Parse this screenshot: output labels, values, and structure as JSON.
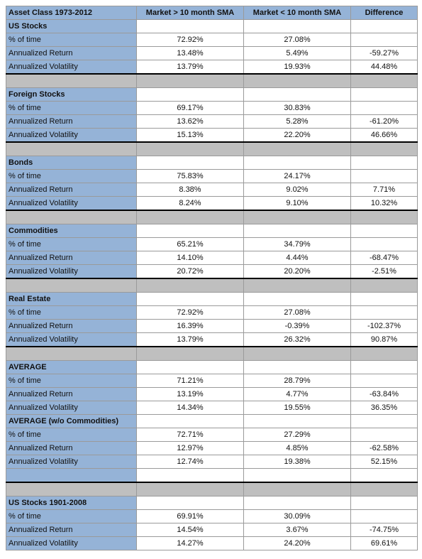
{
  "header": [
    "Asset Class 1973-2012",
    "Market > 10 month SMA",
    "Market < 10 month SMA",
    "Difference"
  ],
  "sections": [
    {
      "title": "US Stocks",
      "rows": [
        {
          "label": "% of time",
          "values": [
            "72.92%",
            "27.08%"
          ]
        },
        {
          "label": "Annualized Return",
          "values": [
            "13.48%",
            "5.49%",
            "-59.27%"
          ]
        },
        {
          "label": "Annualized Volatility",
          "values": [
            "13.79%",
            "19.93%",
            "44.48%"
          ]
        }
      ]
    },
    {
      "title": "Foreign Stocks",
      "rows": [
        {
          "label": "% of time",
          "values": [
            "69.17%",
            "30.83%"
          ]
        },
        {
          "label": "Annualized Return",
          "values": [
            "13.62%",
            "5.28%",
            "-61.20%"
          ]
        },
        {
          "label": "Annualized Volatility",
          "values": [
            "15.13%",
            "22.20%",
            "46.66%"
          ]
        }
      ]
    },
    {
      "title": "Bonds",
      "rows": [
        {
          "label": "% of time",
          "values": [
            "75.83%",
            "24.17%"
          ]
        },
        {
          "label": "Annualized Return",
          "values": [
            "8.38%",
            "9.02%",
            "7.71%"
          ]
        },
        {
          "label": "Annualized Volatility",
          "values": [
            "8.24%",
            "9.10%",
            "10.32%"
          ]
        }
      ]
    },
    {
      "title": "Commodities",
      "rows": [
        {
          "label": "% of time",
          "values": [
            "65.21%",
            "34.79%"
          ]
        },
        {
          "label": "Annualized Return",
          "values": [
            "14.10%",
            "4.44%",
            "-68.47%"
          ]
        },
        {
          "label": "Annualized Volatility",
          "values": [
            "20.72%",
            "20.20%",
            "-2.51%"
          ]
        }
      ]
    },
    {
      "title": "Real Estate",
      "rows": [
        {
          "label": "% of time",
          "values": [
            "72.92%",
            "27.08%"
          ]
        },
        {
          "label": "Annualized Return",
          "values": [
            "16.39%",
            "-0.39%",
            "-102.37%"
          ]
        },
        {
          "label": "Annualized Volatility",
          "values": [
            "13.79%",
            "26.32%",
            "90.87%"
          ]
        }
      ]
    },
    {
      "title": "AVERAGE",
      "rows": [
        {
          "label": "% of time",
          "values": [
            "71.21%",
            "28.79%"
          ]
        },
        {
          "label": "Annualized Return",
          "values": [
            "13.19%",
            "4.77%",
            "-63.84%"
          ]
        },
        {
          "label": "Annualized Volatility",
          "values": [
            "14.34%",
            "19.55%",
            "36.35%"
          ]
        }
      ]
    },
    {
      "title": "AVERAGE (w/o Commodities)",
      "rows": [
        {
          "label": "% of time",
          "values": [
            "72.71%",
            "27.29%"
          ]
        },
        {
          "label": "Annualized Return",
          "values": [
            "12.97%",
            "4.85%",
            "-62.58%"
          ]
        },
        {
          "label": "Annualized Volatility",
          "values": [
            "12.74%",
            "19.38%",
            "52.15%"
          ]
        }
      ]
    },
    {
      "title": "US Stocks 1901-2008",
      "rows": [
        {
          "label": "% of time",
          "values": [
            "69.91%",
            "30.09%"
          ]
        },
        {
          "label": "Annualized Return",
          "values": [
            "14.54%",
            "3.67%",
            "-74.75%"
          ]
        },
        {
          "label": "Annualized Volatility",
          "values": [
            "14.27%",
            "24.20%",
            "69.61%"
          ]
        }
      ]
    }
  ]
}
